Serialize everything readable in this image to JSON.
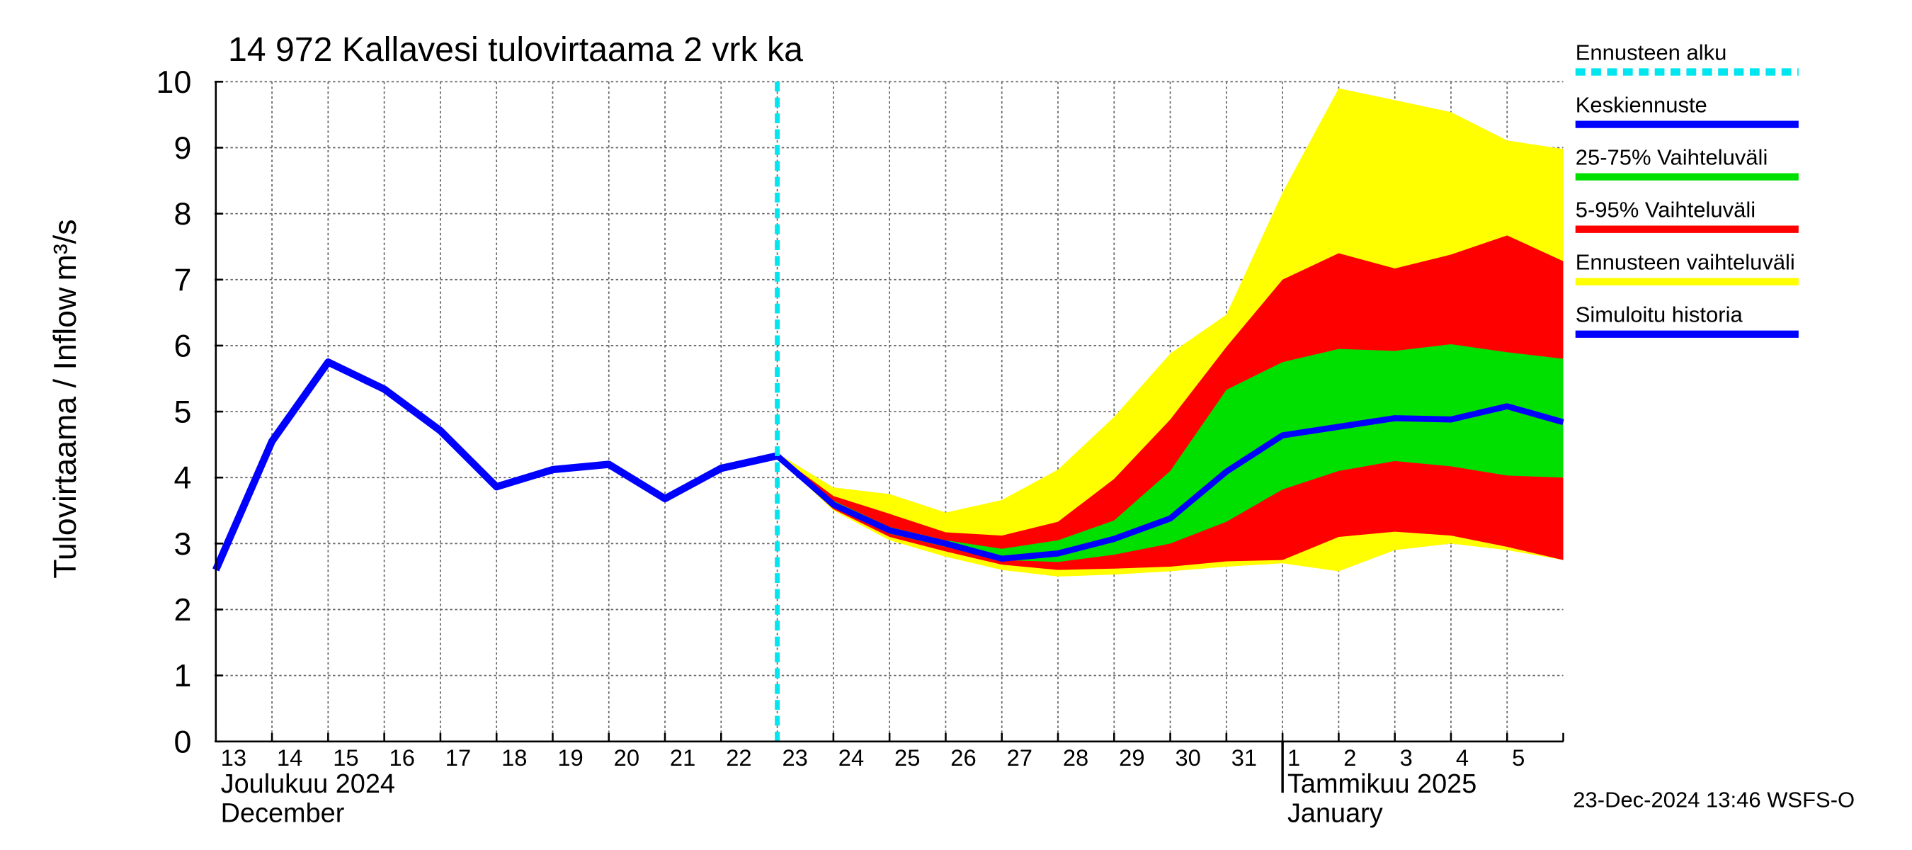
{
  "chart_data": {
    "type": "line",
    "title": "14 972 Kallavesi tulovirtaama 2 vrk ka",
    "y_label": "Tulovirtaama / Inflow",
    "y_unit": "m³/s",
    "footer": "23-Dec-2024 13:46 WSFS-O",
    "categories": [
      "13",
      "14",
      "15",
      "16",
      "17",
      "18",
      "19",
      "20",
      "21",
      "22",
      "23",
      "24",
      "25",
      "26",
      "27",
      "28",
      "29",
      "30",
      "31",
      "1",
      "2",
      "3",
      "4",
      "5",
      null
    ],
    "month_labels": [
      {
        "at": 0,
        "lines": [
          "Joulukuu  2024",
          "December"
        ]
      },
      {
        "at": 19,
        "lines": [
          "Tammikuu  2025",
          "January"
        ]
      }
    ],
    "ylim": [
      0,
      10
    ],
    "yticks": [
      0,
      1,
      2,
      3,
      4,
      5,
      6,
      7,
      8,
      9,
      10
    ],
    "grid": true,
    "forecast_start": {
      "name": "Ennusteen alku",
      "color": "#00e5ee",
      "at": 10
    },
    "bands": [
      {
        "name": "Ennusteen vaihteluväli",
        "color": "#ffff00",
        "upper": [
          null,
          null,
          null,
          null,
          null,
          null,
          null,
          null,
          null,
          null,
          4.37,
          3.85,
          3.75,
          3.47,
          3.66,
          4.12,
          4.92,
          5.88,
          6.47,
          8.32,
          9.9,
          9.72,
          9.54,
          9.11,
          8.98
        ],
        "lower": [
          null,
          null,
          null,
          null,
          null,
          null,
          null,
          null,
          null,
          null,
          4.3,
          3.5,
          3.05,
          2.8,
          2.6,
          2.5,
          2.53,
          2.58,
          2.65,
          2.7,
          2.58,
          2.9,
          3.0,
          2.9,
          2.75
        ]
      },
      {
        "name": "5-95% Vaihteluväli",
        "color": "#ff0000",
        "upper": [
          null,
          null,
          null,
          null,
          null,
          null,
          null,
          null,
          null,
          null,
          4.35,
          3.72,
          3.45,
          3.17,
          3.12,
          3.33,
          3.98,
          4.88,
          5.98,
          7.0,
          7.4,
          7.17,
          7.38,
          7.67,
          7.28
        ],
        "lower": [
          null,
          null,
          null,
          null,
          null,
          null,
          null,
          null,
          null,
          null,
          4.3,
          3.52,
          3.1,
          2.88,
          2.68,
          2.6,
          2.62,
          2.65,
          2.73,
          2.75,
          3.1,
          3.18,
          3.12,
          2.95,
          2.75
        ]
      },
      {
        "name": "25-75% Vaihteluväli",
        "color": "#00e000",
        "upper": [
          null,
          null,
          null,
          null,
          null,
          null,
          null,
          null,
          null,
          null,
          4.33,
          3.65,
          3.25,
          3.05,
          2.92,
          3.05,
          3.35,
          4.1,
          5.33,
          5.75,
          5.95,
          5.92,
          6.02,
          5.9,
          5.8
        ],
        "lower": [
          null,
          null,
          null,
          null,
          null,
          null,
          null,
          null,
          null,
          null,
          4.33,
          3.55,
          3.15,
          2.95,
          2.75,
          2.72,
          2.83,
          3.0,
          3.33,
          3.82,
          4.1,
          4.25,
          4.17,
          4.03,
          4.0
        ]
      }
    ],
    "series": [
      {
        "name": "Keskiennuste",
        "color": "#0000ff",
        "values": [
          null,
          null,
          null,
          null,
          null,
          null,
          null,
          null,
          null,
          null,
          4.33,
          3.59,
          3.2,
          3.0,
          2.77,
          2.85,
          3.07,
          3.38,
          4.09,
          4.64,
          4.77,
          4.9,
          4.88,
          5.08,
          4.84
        ]
      },
      {
        "name": "Simuloitu historia",
        "color": "#0000ff",
        "values": [
          2.6,
          4.55,
          5.75,
          5.34,
          4.71,
          3.86,
          4.12,
          4.2,
          3.68,
          4.14,
          4.33,
          null,
          null,
          null,
          null,
          null,
          null,
          null,
          null,
          null,
          null,
          null,
          null,
          null,
          null
        ]
      }
    ],
    "legend": [
      "forecast_start",
      "series.0",
      "bands.2",
      "bands.1",
      "bands.0",
      "series.1"
    ]
  }
}
